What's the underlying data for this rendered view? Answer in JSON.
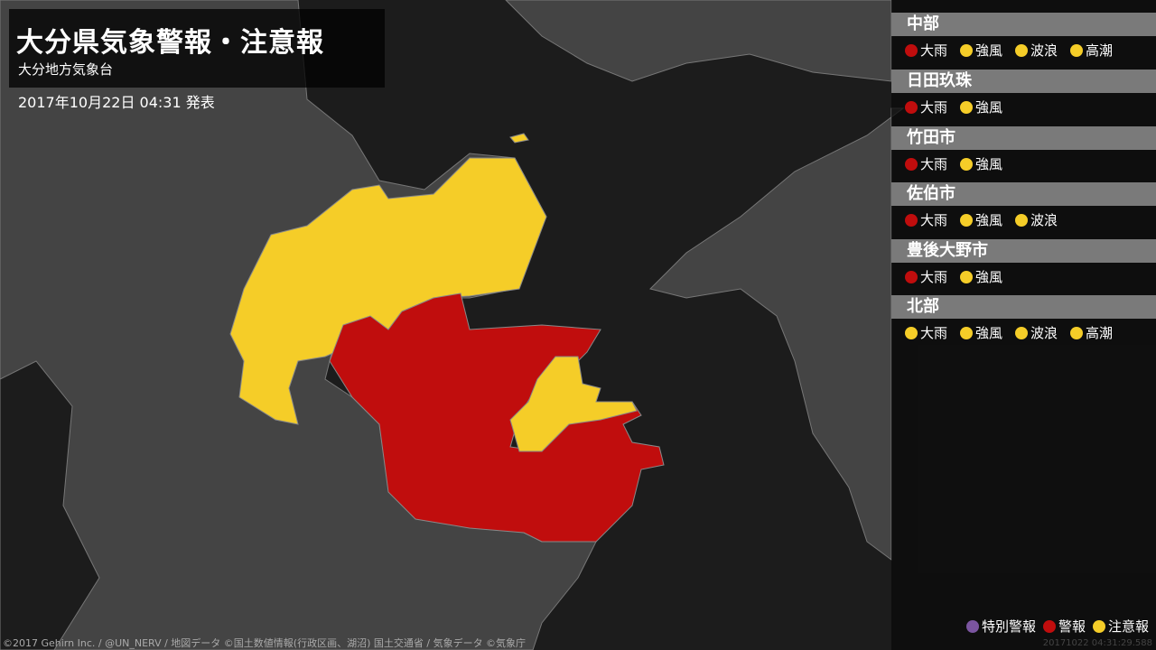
{
  "header": {
    "title": "大分県気象警報・注意報",
    "office": "大分地方気象台",
    "issued": "2017年10月22日 04:31 発表"
  },
  "colors": {
    "special": "#7b55a0",
    "warning": "#c00d0d",
    "advisory": "#f5cd28",
    "land": "#444444",
    "sea": "#1c1c1c"
  },
  "regions": [
    {
      "name": "中部",
      "items": [
        {
          "label": "大雨",
          "level": "warning"
        },
        {
          "label": "強風",
          "level": "advisory"
        },
        {
          "label": "波浪",
          "level": "advisory"
        },
        {
          "label": "高潮",
          "level": "advisory"
        }
      ]
    },
    {
      "name": "日田玖珠",
      "items": [
        {
          "label": "大雨",
          "level": "warning"
        },
        {
          "label": "強風",
          "level": "advisory"
        }
      ]
    },
    {
      "name": "竹田市",
      "items": [
        {
          "label": "大雨",
          "level": "warning"
        },
        {
          "label": "強風",
          "level": "advisory"
        }
      ]
    },
    {
      "name": "佐伯市",
      "items": [
        {
          "label": "大雨",
          "level": "warning"
        },
        {
          "label": "強風",
          "level": "advisory"
        },
        {
          "label": "波浪",
          "level": "advisory"
        }
      ]
    },
    {
      "name": "豊後大野市",
      "items": [
        {
          "label": "大雨",
          "level": "warning"
        },
        {
          "label": "強風",
          "level": "advisory"
        }
      ]
    },
    {
      "name": "北部",
      "items": [
        {
          "label": "大雨",
          "level": "advisory"
        },
        {
          "label": "強風",
          "level": "advisory"
        },
        {
          "label": "波浪",
          "level": "advisory"
        },
        {
          "label": "高潮",
          "level": "advisory"
        }
      ]
    }
  ],
  "legend": [
    {
      "label": "特別警報",
      "level": "special"
    },
    {
      "label": "警報",
      "level": "warning"
    },
    {
      "label": "注意報",
      "level": "advisory"
    }
  ],
  "timestamp": "20171022 04:31:29.588",
  "credit": "©2017 Gehirn Inc. / @UN_NERV / 地図データ ©国土数値情報(行政区画、湖沼) 国土交通省 / 気象データ ©気象庁"
}
